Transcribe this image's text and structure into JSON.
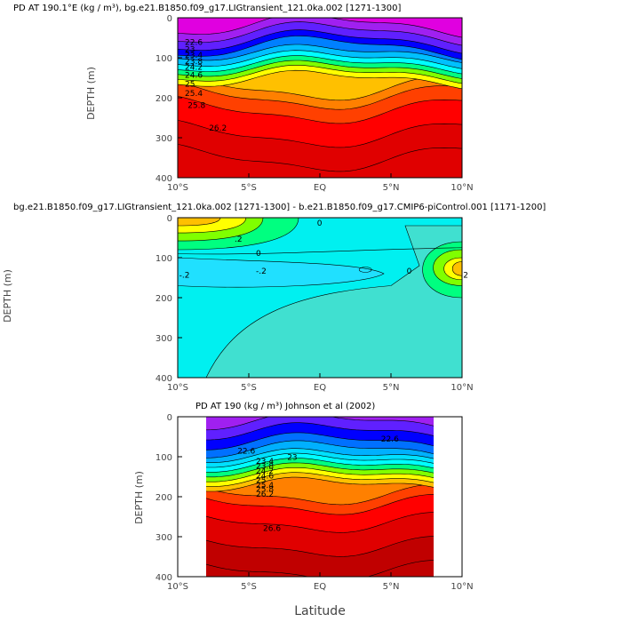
{
  "figure": {
    "xlabel": "Latitude"
  },
  "chart_data": [
    {
      "type": "heatmap",
      "title": "PD AT 190.1°E (kg / m³), bg.e21.B1850.f09_g17.LIGtransient_121.0ka.002 [1271-1300]",
      "ylabel": "DEPTH (m)",
      "xlabel": "",
      "x_ticks": [
        "10°S",
        "5°S",
        "EQ",
        "5°N",
        "10°N"
      ],
      "y_ticks": [
        "0",
        "100",
        "200",
        "300",
        "400"
      ],
      "xlim": [
        -10,
        10
      ],
      "ylim": [
        400,
        0
      ],
      "contour_labels": [
        "22.6",
        "23",
        "23.4",
        "23.8",
        "24.2",
        "24.6",
        "25",
        "25.4",
        "25.8",
        "26.2"
      ],
      "colors": [
        "#e000e0",
        "#a020f0",
        "#6020ff",
        "#0000ff",
        "#0080ff",
        "#00c0ff",
        "#00ffff",
        "#00ff80",
        "#80ff00",
        "#ffff00",
        "#ffc000",
        "#ff8000",
        "#ff4000",
        "#ff0000",
        "#e00000"
      ]
    },
    {
      "type": "heatmap",
      "title": "bg.e21.B1850.f09_g17.LIGtransient_121.0ka.002 [1271-1300] - b.e21.B1850.f09_g17.CMIP6-piControl.001 [1171-1200]",
      "ylabel": "DEPTH (m)",
      "xlabel": "",
      "x_ticks": [
        "10°S",
        "5°S",
        "EQ",
        "5°N",
        "10°N"
      ],
      "y_ticks": [
        "0",
        "100",
        "200",
        "300",
        "400"
      ],
      "xlim": [
        -10,
        10
      ],
      "ylim": [
        400,
        0
      ],
      "contour_labels": [
        "-.2",
        "0",
        ".2",
        "0",
        "-.2",
        ".2",
        "0"
      ],
      "colors": [
        "#00f0f0",
        "#40e0d0",
        "#00ff80",
        "#80ff00",
        "#ffff00",
        "#ffc000",
        "#ff8000"
      ]
    },
    {
      "type": "heatmap",
      "title": "PD AT 190 (kg / m³) Johnson et al (2002)",
      "ylabel": "DEPTH (m)",
      "xlabel": "",
      "x_ticks": [
        "10°S",
        "5°S",
        "EQ",
        "5°N",
        "10°N"
      ],
      "y_ticks": [
        "0",
        "100",
        "200",
        "300",
        "400"
      ],
      "xlim": [
        -10,
        10
      ],
      "ylim": [
        400,
        0
      ],
      "data_xrange": [
        -8,
        8
      ],
      "contour_labels": [
        "22.6",
        "23",
        "22.6",
        "23.4",
        "23.8",
        "24.2",
        "24.6",
        "25",
        "25.4",
        "25.8",
        "26.2",
        "26.6"
      ],
      "colors": [
        "#a020f0",
        "#6020ff",
        "#0000ff",
        "#0070ff",
        "#00b0ff",
        "#00e0ff",
        "#00ffff",
        "#00ff80",
        "#80ff00",
        "#ffff00",
        "#ffc000",
        "#ff8000",
        "#ff4000",
        "#ff0000",
        "#e00000",
        "#c00000"
      ]
    }
  ]
}
